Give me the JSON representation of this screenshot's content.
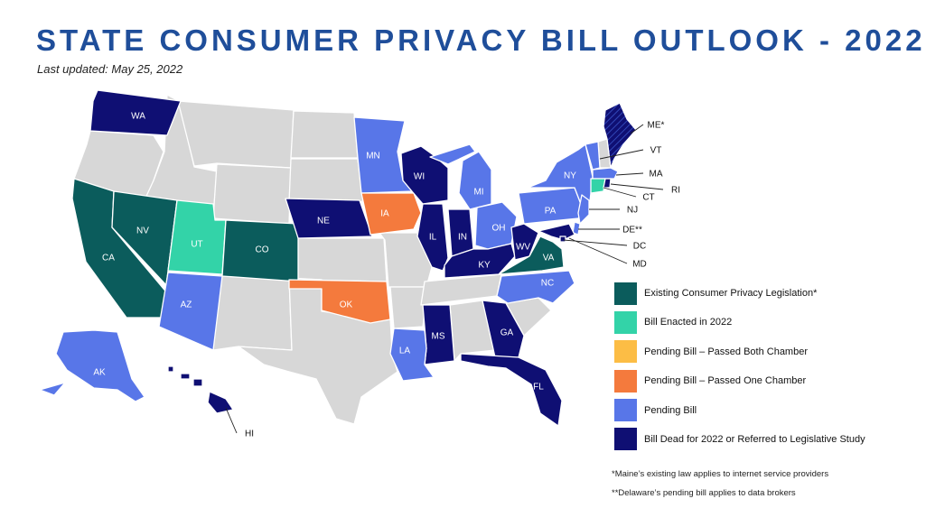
{
  "title": "STATE CONSUMER PRIVACY BILL OUTLOOK - 2022",
  "subtitle": "Last updated: May 25, 2022",
  "colors": {
    "existing": "#0b5c5c",
    "enacted": "#33d3a8",
    "passed_both": "#fcbd45",
    "passed_one": "#f47a3d",
    "pending": "#5876e8",
    "dead": "#0f0f73",
    "none": "#d7d7d7"
  },
  "legend": [
    {
      "key": "existing",
      "label": "Existing Consumer Privacy Legislation*"
    },
    {
      "key": "enacted",
      "label": "Bill Enacted in 2022"
    },
    {
      "key": "passed_both",
      "label": "Pending Bill – Passed Both Chamber"
    },
    {
      "key": "passed_one",
      "label": "Pending Bill – Passed One Chamber"
    },
    {
      "key": "pending",
      "label": "Pending Bill"
    },
    {
      "key": "dead",
      "label": "Bill Dead for 2022 or Referred to Legislative Study"
    }
  ],
  "notes": [
    "*Maine’s existing law applies to internet service providers",
    "**Delaware’s  pending bill applies to data brokers"
  ],
  "states": {
    "CA": "existing",
    "NV": "existing",
    "CO": "existing",
    "VA": "existing",
    "UT": "enacted",
    "CT": "enacted",
    "IA": "passed_one",
    "OK": "passed_one",
    "AZ": "pending",
    "AK": "pending",
    "MN": "pending",
    "MI": "pending",
    "OH": "pending",
    "PA": "pending",
    "NY": "pending",
    "NC": "pending",
    "LA": "pending",
    "VT": "pending",
    "MA": "pending",
    "NJ": "pending",
    "DE": "pending",
    "WA": "dead",
    "NE": "dead",
    "WI": "dead",
    "IL": "dead",
    "IN": "dead",
    "KY": "dead",
    "WV": "dead",
    "MS": "dead",
    "GA": "dead",
    "FL": "dead",
    "HI": "dead",
    "ME": "dead",
    "RI": "dead",
    "MD": "dead",
    "DC": "dead"
  },
  "labels": {
    "WA": "WA",
    "CA": "CA",
    "NV": "NV",
    "UT": "UT",
    "CO": "CO",
    "AZ": "AZ",
    "AK": "AK",
    "HI": "HI",
    "NE": "NE",
    "MN": "MN",
    "IA": "IA",
    "OK": "OK",
    "WI": "WI",
    "IL": "IL",
    "IN": "IN",
    "MI": "MI",
    "OH": "OH",
    "KY": "KY",
    "WV": "WV",
    "VA": "VA",
    "NC": "NC",
    "MS": "MS",
    "LA": "LA",
    "GA": "GA",
    "FL": "FL",
    "PA": "PA",
    "NY": "NY",
    "ME": "ME*",
    "VT": "VT",
    "MA": "MA",
    "RI": "RI",
    "CT": "CT",
    "NJ": "NJ",
    "DE": "DE**",
    "DC": "DC",
    "MD": "MD"
  }
}
